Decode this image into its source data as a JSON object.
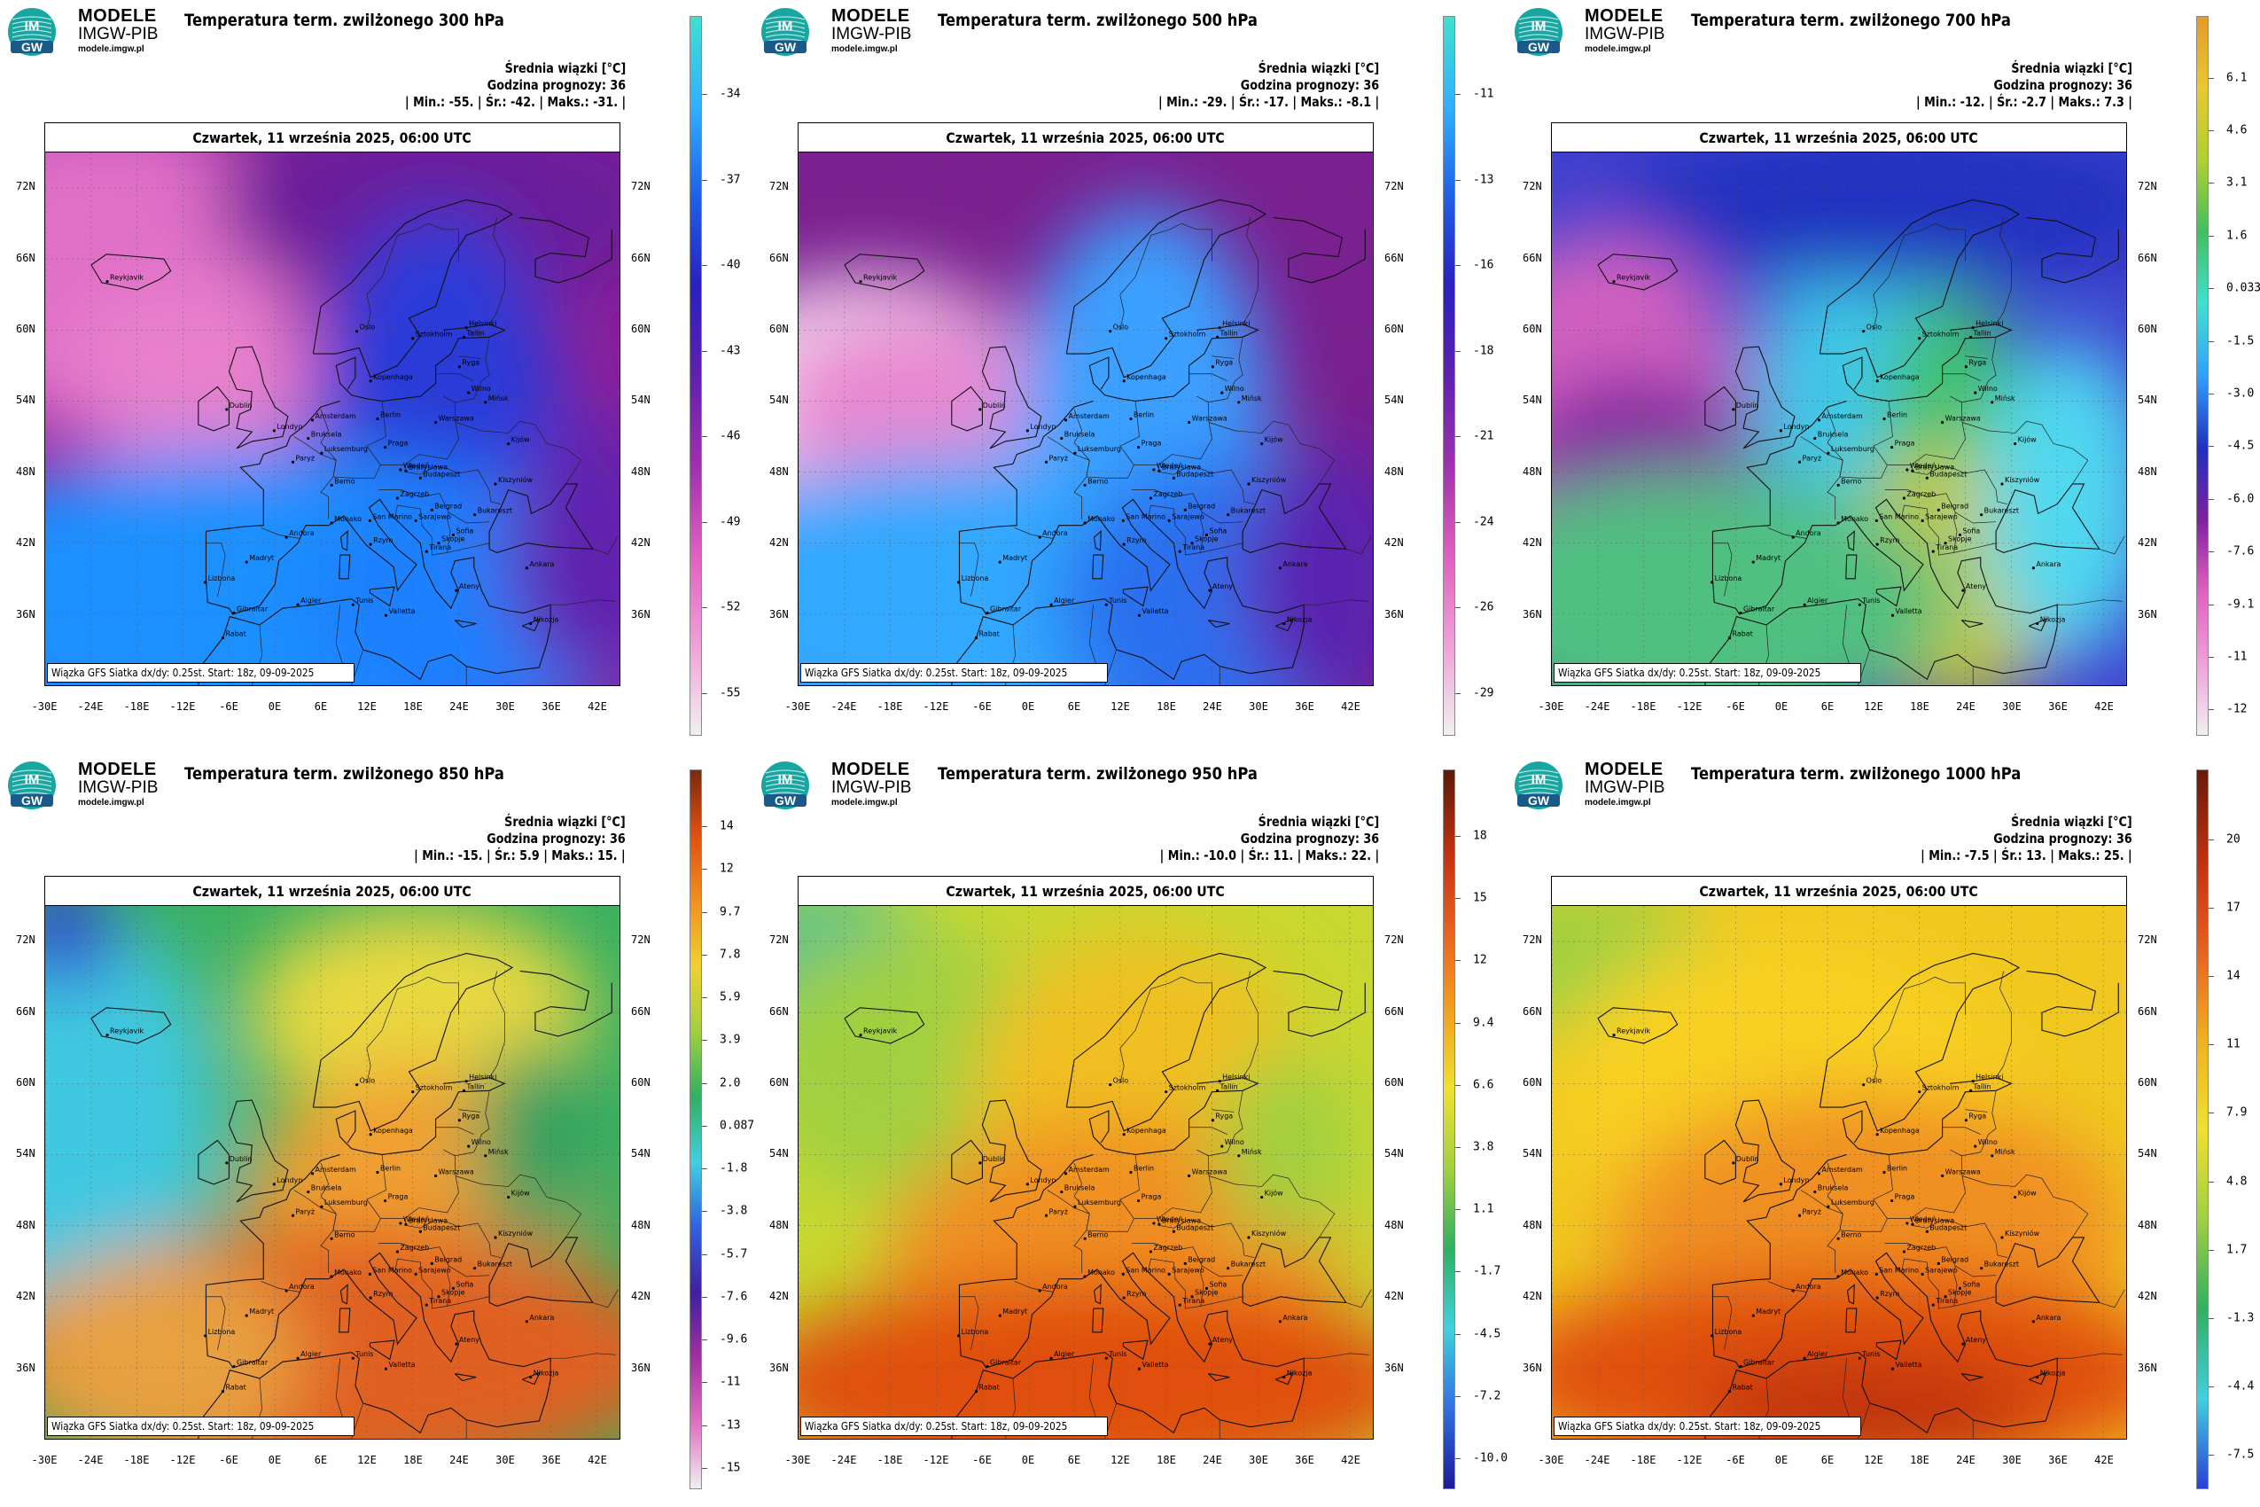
{
  "brand": {
    "line1": "MODELE",
    "line2": "IMGW-PIB",
    "line3": "modele.imgw.pl",
    "logo_top": "IM",
    "logo_bottom": "GW"
  },
  "common": {
    "stats_title": "Średnia wiązki [°C]",
    "forecast_hour": "Godzina prognozy: 36",
    "date": "Czwartek, 11 września 2025, 06:00 UTC",
    "footer": "Wiązka GFS Siatka dx/dy: 0.25st. Start: 18z, 09-09-2025",
    "lon_labels": [
      "-30E",
      "-24E",
      "-18E",
      "-12E",
      "-6E",
      "0E",
      "6E",
      "12E",
      "18E",
      "24E",
      "30E",
      "36E",
      "42E"
    ],
    "lat_labels": [
      "72N",
      "66N",
      "60N",
      "54N",
      "48N",
      "42N",
      "36N"
    ],
    "cities": [
      "Oslo",
      "Helsinki",
      "Sztokholm",
      "Tallin",
      "Kopenhaga",
      "Ryga",
      "Wilno",
      "Mińsk",
      "Dublin",
      "Londyn",
      "Amsterdam",
      "Bruksela",
      "Berlin",
      "Warszawa",
      "Kijów",
      "Paryż",
      "Praga",
      "Luksemburg",
      "Bratysława",
      "Budapeszt",
      "Kiszyniów",
      "Berno",
      "Wiedeń",
      "Zagrzeb",
      "Belgrad",
      "Bukareszt",
      "Monako",
      "San Marino",
      "Sarajewo",
      "Sofia",
      "Andora",
      "Rzym",
      "Skopje",
      "Tirana",
      "Ankara",
      "Madryt",
      "Lizbona",
      "Ateny",
      "Algier",
      "Tunis",
      "Gibraltar",
      "Valletta",
      "Nikozja",
      "Rabat",
      "Reykjavik"
    ]
  },
  "panels": [
    {
      "title": "Temperatura term. zwilżonego 300 hPa",
      "stats": "| Min.:   -55. | Śr.:   -42. | Maks.:   -31. |",
      "scheme": "cold",
      "cb_labels": [
        "-34",
        "-37",
        "-40",
        "-43",
        "-46",
        "-49",
        "-52",
        "-55"
      ],
      "cb_top": "#40e0d0",
      "cb_bottom": "#f0f0f0"
    },
    {
      "title": "Temperatura term. zwilżonego 500 hPa",
      "stats": "| Min.:   -29. | Śr.:   -17. | Maks.:   -8.1 |",
      "scheme": "mid",
      "cb_labels": [
        "-11",
        "-13",
        "-16",
        "-18",
        "-21",
        "-24",
        "-26",
        "-29"
      ],
      "cb_top": "#40e0d0",
      "cb_bottom": "#f0f0f0"
    },
    {
      "title": "Temperatura term. zwilżonego 700 hPa",
      "stats": "| Min.:   -12. | Śr.:   -2.7 | Maks.:   7.3 |",
      "scheme": "mix",
      "cb_labels": [
        "6.1",
        "4.6",
        "3.1",
        "1.6",
        "0.033",
        "-1.5",
        "-3.0",
        "-4.5",
        "-6.0",
        "-7.6",
        "-9.1",
        "-11",
        "-12"
      ],
      "cb_top": "#e69a2a",
      "cb_bottom": "#f0f0f0"
    },
    {
      "title": "Temperatura term. zwilżonego 850 hPa",
      "stats": "| Min.:   -15. | Śr.:   5.9 | Maks.:   15. |",
      "scheme": "warm1",
      "cb_labels": [
        "14",
        "12",
        "9.7",
        "7.8",
        "5.9",
        "3.9",
        "2.0",
        "0.087",
        "-1.8",
        "-3.8",
        "-5.7",
        "-7.6",
        "-9.6",
        "-11",
        "-13",
        "-15"
      ],
      "cb_top": "#7a2a10",
      "cb_bottom": "#f0f0f0"
    },
    {
      "title": "Temperatura term. zwilżonego 950 hPa",
      "stats": "| Min.:   -10.0 | Śr.:   11. | Maks.:   22. |",
      "scheme": "warm2",
      "cb_labels": [
        "18",
        "15",
        "12",
        "9.4",
        "6.6",
        "3.8",
        "1.1",
        "-1.7",
        "-4.5",
        "-7.2",
        "-10.0"
      ],
      "cb_top": "#5a1a08",
      "cb_bottom": "#1a1a9a"
    },
    {
      "title": "Temperatura term. zwilżonego 1000 hPa",
      "stats": "| Min.:   -7.5 | Śr.:   13. | Maks.:   25. |",
      "scheme": "warm3",
      "cb_labels": [
        "20",
        "17",
        "14",
        "11",
        "7.9",
        "4.8",
        "1.7",
        "-1.3",
        "-4.4",
        "-7.5"
      ],
      "cb_top": "#6a1a08",
      "cb_bottom": "#2a40d8"
    }
  ]
}
